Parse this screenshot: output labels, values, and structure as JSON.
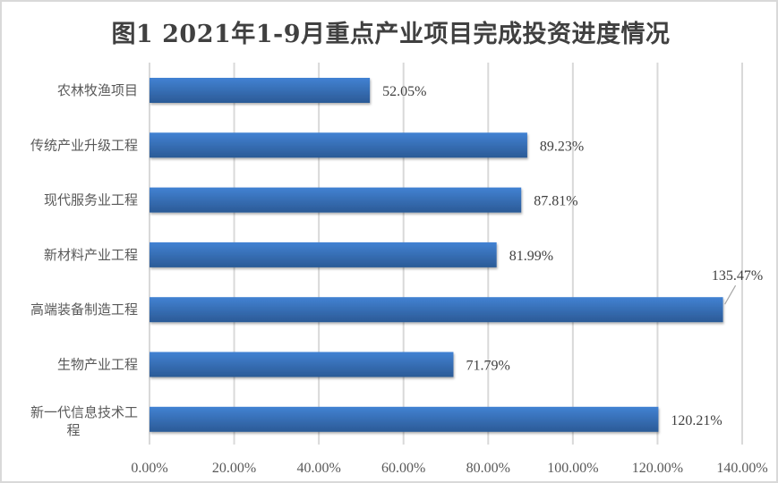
{
  "chart_data": {
    "type": "bar",
    "orientation": "horizontal",
    "title": "图1 2021年1-9月重点产业项目完成投资进度情况",
    "categories": [
      "农林牧渔项目",
      "传统产业升级工程",
      "现代服务业工程",
      "新材料产业工程",
      "高端装备制造工程",
      "生物产业工程",
      "新一代信息技术工程"
    ],
    "values": [
      52.05,
      89.23,
      87.81,
      81.99,
      135.47,
      71.79,
      120.21
    ],
    "data_labels": [
      "52.05%",
      "89.23%",
      "87.81%",
      "81.99%",
      "135.47%",
      "71.79%",
      "120.21%"
    ],
    "xlim": [
      0,
      140
    ],
    "xticks": [
      "0.00%",
      "20.00%",
      "40.00%",
      "60.00%",
      "80.00%",
      "100.00%",
      "120.00%",
      "140.00%"
    ],
    "xlabel": "",
    "ylabel": "",
    "grid": true,
    "legend": "none",
    "colors": {
      "bar_top": "#4282d3",
      "bar_bottom": "#2b5a96",
      "grid": "#d9d9d9"
    }
  }
}
